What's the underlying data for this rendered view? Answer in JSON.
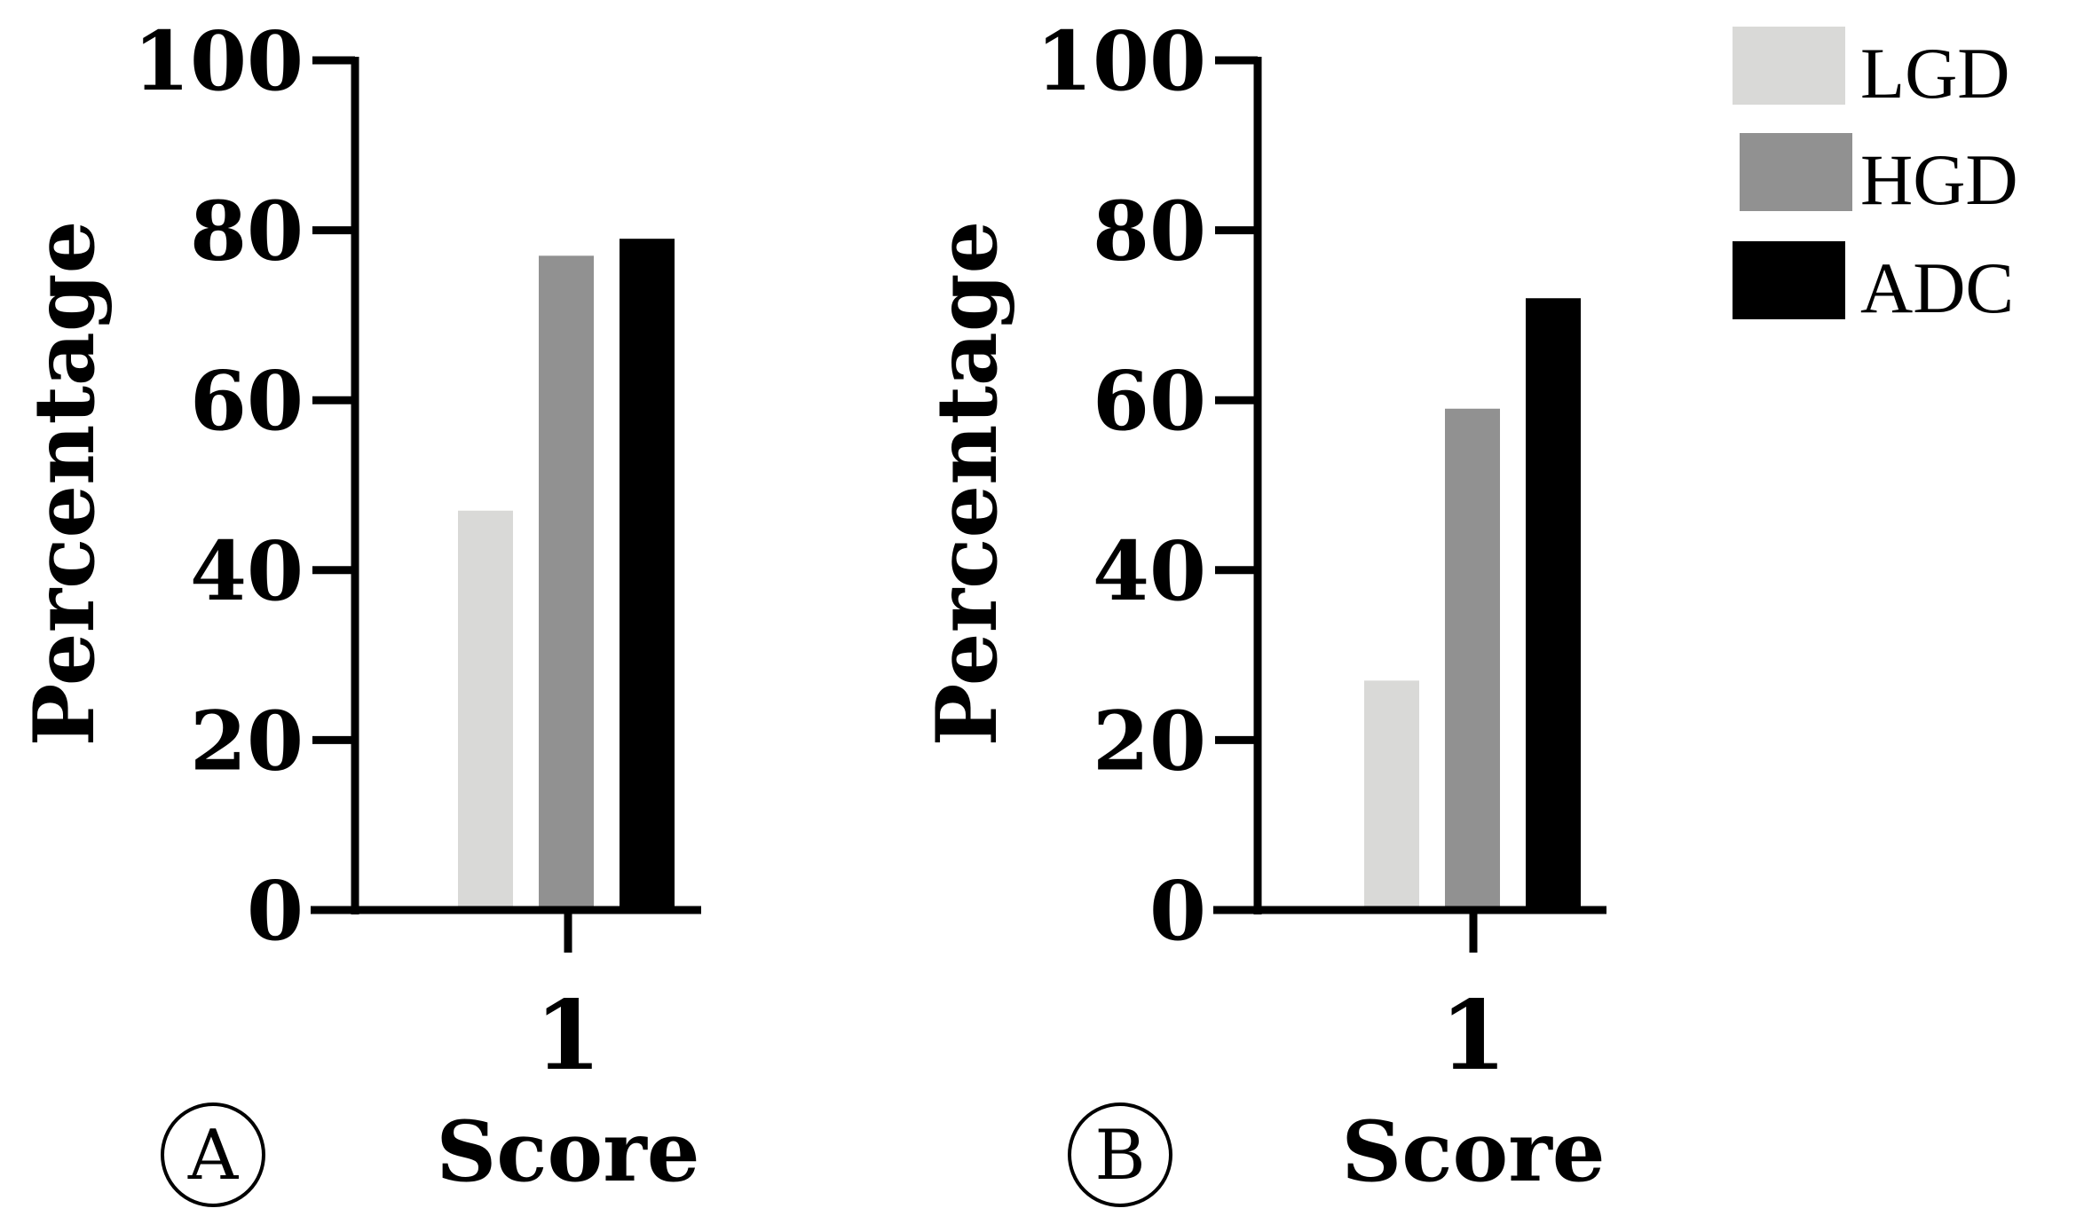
{
  "chart_data": [
    {
      "type": "bar",
      "panel": "A",
      "categories": [
        "1"
      ],
      "series": [
        {
          "name": "LGD",
          "values": [
            47
          ]
        },
        {
          "name": "HGD",
          "values": [
            77
          ]
        },
        {
          "name": "ADC",
          "values": [
            79
          ]
        }
      ],
      "xlabel": "Score",
      "ylabel": "Percentage",
      "ylim": [
        0,
        100
      ],
      "yticks": [
        "0",
        "20",
        "40",
        "60",
        "80",
        "100"
      ],
      "grid": false
    },
    {
      "type": "bar",
      "panel": "B",
      "categories": [
        "1"
      ],
      "series": [
        {
          "name": "LGD",
          "values": [
            27
          ]
        },
        {
          "name": "HGD",
          "values": [
            59
          ]
        },
        {
          "name": "ADC",
          "values": [
            72
          ]
        }
      ],
      "xlabel": "Score",
      "ylabel": "Percentage",
      "ylim": [
        0,
        100
      ],
      "yticks": [
        "0",
        "20",
        "40",
        "60",
        "80",
        "100"
      ],
      "grid": false
    }
  ],
  "legend": {
    "placement": "top-right",
    "items": [
      {
        "label": "LGD",
        "color": "#d9d9d7"
      },
      {
        "label": "HGD",
        "color": "#919191"
      },
      {
        "label": "ADC",
        "color": "#000000"
      }
    ]
  }
}
